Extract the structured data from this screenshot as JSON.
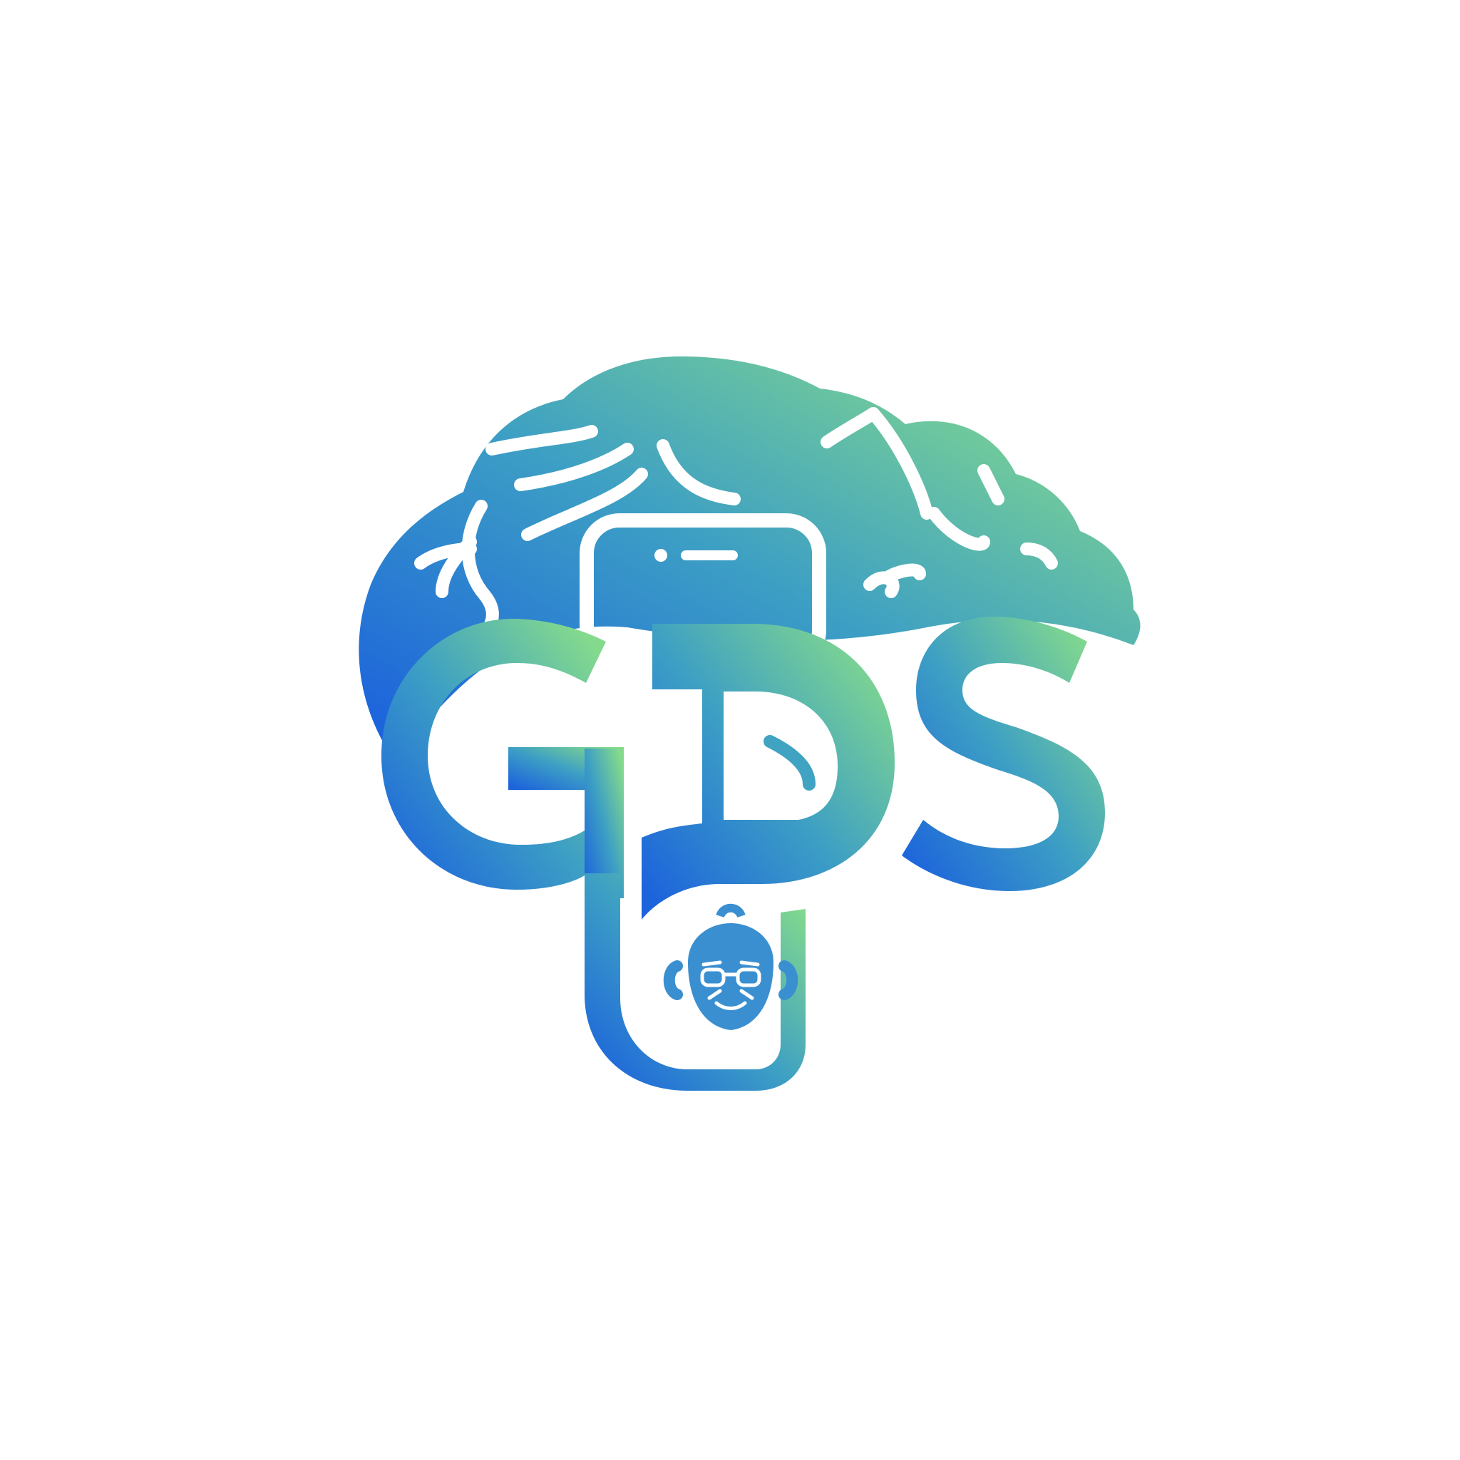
{
  "logo": {
    "wordmark": "GDS",
    "background_color": "#ffffff",
    "gradient_start": "#1c63dc",
    "gradient_mid": "#3d9fc4",
    "gradient_end": "#84da8c",
    "line_color": "#ffffff",
    "icons": [
      "brain-icon",
      "phone-icon",
      "person-with-glasses-icon"
    ]
  }
}
